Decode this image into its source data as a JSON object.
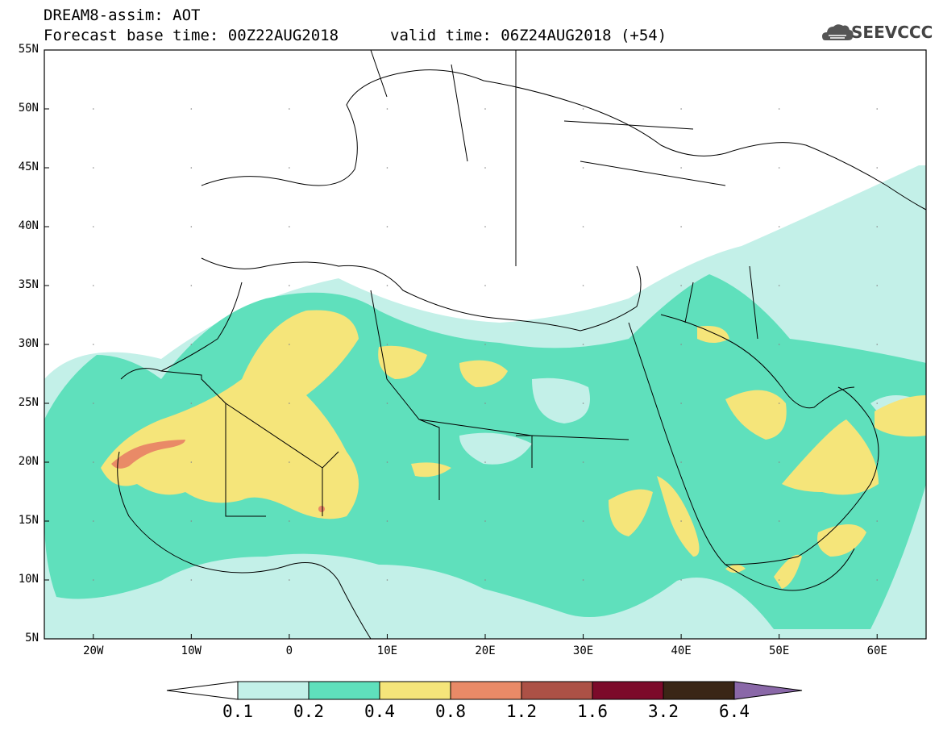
{
  "header": {
    "line1": "DREAM8-assim: AOT",
    "line2": "Forecast base time: 00Z22AUG2018",
    "valid": "valid time: 06Z24AUG2018 (+54)",
    "logo_text": "SEEVCCC"
  },
  "axes": {
    "lat_labels": [
      "55N",
      "50N",
      "45N",
      "40N",
      "35N",
      "30N",
      "25N",
      "20N",
      "15N",
      "10N",
      "5N"
    ],
    "lon_labels": [
      "20W",
      "10W",
      "0",
      "10E",
      "20E",
      "30E",
      "40E",
      "50E",
      "60E"
    ],
    "lon_range": [
      -25,
      65
    ],
    "lat_range": [
      5,
      55
    ]
  },
  "legend": {
    "thresholds": [
      "0.1",
      "0.2",
      "0.4",
      "0.8",
      "1.2",
      "1.6",
      "3.2",
      "6.4"
    ],
    "colors": [
      "#c3f0e8",
      "#5fe0bc",
      "#f5e57a",
      "#e98a67",
      "#ac5146",
      "#7c0a2a",
      "#3a2616",
      "#8a68a8"
    ]
  }
}
